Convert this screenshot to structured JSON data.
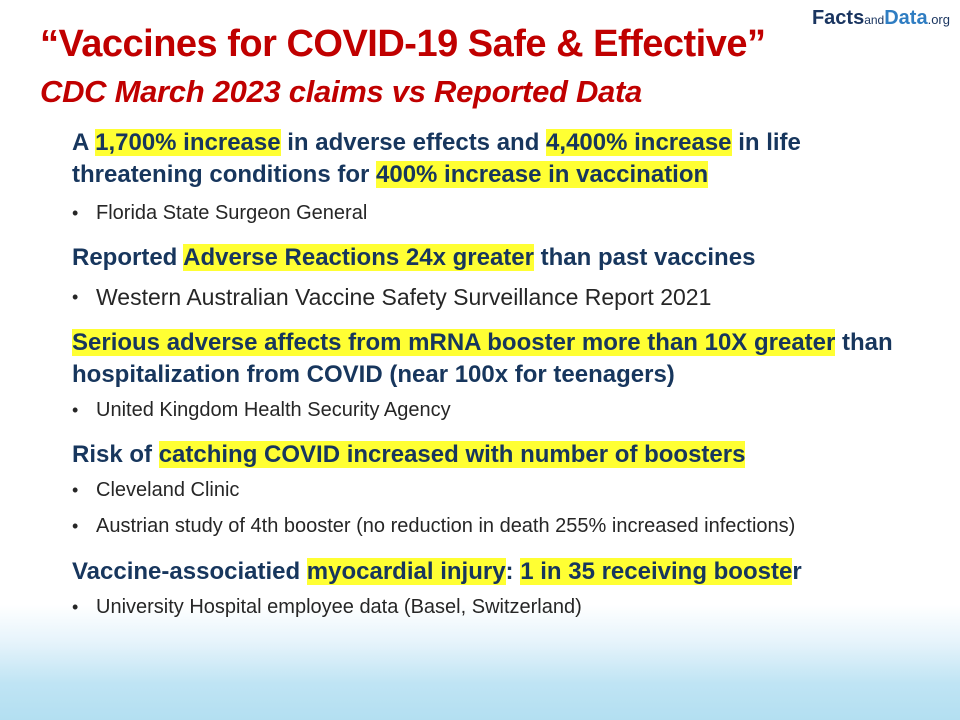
{
  "logo": {
    "part1": "Facts",
    "part2": "and",
    "part3": "Data",
    "part4": ".org"
  },
  "title": "“Vaccines for COVID-19 Safe & Effective”",
  "subtitle": "CDC March 2023 claims vs Reported Data",
  "claims": [
    {
      "line": {
        "t1": "A ",
        "h1": "1,700% increase",
        "t2": " in adverse effects and ",
        "h2": "4,400% increase",
        "t3": " in life threatening conditions for ",
        "h3": "400% increase in vaccination"
      },
      "sources": [
        "Florida State Surgeon General"
      ]
    },
    {
      "line": {
        "t1": "Reported ",
        "h1": "Adverse Reactions 24x greater",
        "t2": " than past vaccines"
      },
      "sources": [
        "Western Australian Vaccine Safety Surveillance Report 2021"
      ]
    },
    {
      "line": {
        "h1": "Serious adverse affects from mRNA booster more than 10X greater",
        "t1": " than hospitalization from COVID (near 100x for teenagers)"
      },
      "sources": [
        "United Kingdom Health Security Agency"
      ]
    },
    {
      "line": {
        "t1": "Risk of ",
        "h1": "catching COVID increased with number of boosters"
      },
      "sources": [
        "Cleveland Clinic",
        "Austrian study of 4th booster (no reduction in death 255% increased infections)"
      ]
    },
    {
      "line": {
        "t1": "Vaccine-associatied ",
        "h1": "myocardial injury",
        "t2": ": ",
        "h2": "1 in 35 receiving booste",
        "t3": "r"
      },
      "sources": [
        "University Hospital employee data (Basel, Switzerland)"
      ]
    }
  ],
  "colors": {
    "title": "#c00000",
    "claim_text": "#17365d",
    "highlight": "#ffff33",
    "source_text": "#262626"
  }
}
